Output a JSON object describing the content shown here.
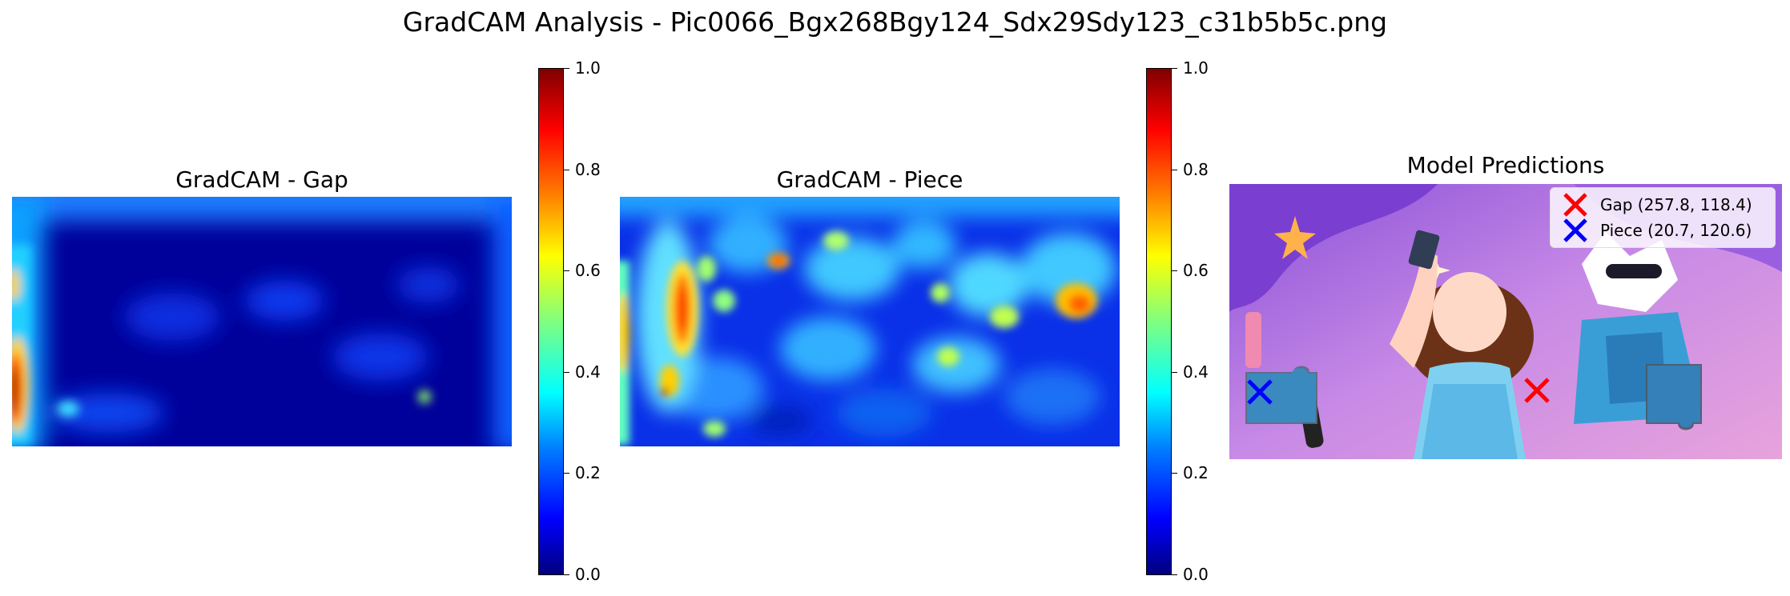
{
  "title": "GradCAM Analysis - Pic0066_Bgx268Bgy124_Sdx29Sdy123_c31b5b5c.png",
  "chart_data": [
    {
      "type": "heatmap",
      "title": "GradCAM - Gap",
      "colormap": "jet",
      "colorbar": {
        "min": 0.0,
        "max": 1.0,
        "ticks": [
          "0.0",
          "0.2",
          "0.4",
          "0.6",
          "0.8",
          "1.0"
        ]
      }
    },
    {
      "type": "heatmap",
      "title": "GradCAM - Piece",
      "colormap": "jet",
      "colorbar": {
        "min": 0.0,
        "max": 1.0,
        "ticks": [
          "0.0",
          "0.2",
          "0.4",
          "0.6",
          "0.8",
          "1.0"
        ]
      }
    },
    {
      "type": "scatter",
      "title": "Model Predictions",
      "legend_position": "top-right",
      "series": [
        {
          "name": "Gap (257.8, 118.4)",
          "x": 257.8,
          "y": 118.4,
          "color": "#ff0000",
          "marker": "x"
        },
        {
          "name": "Piece (20.7, 120.6)",
          "x": 20.7,
          "y": 120.6,
          "color": "#0000ff",
          "marker": "x"
        }
      ]
    }
  ]
}
